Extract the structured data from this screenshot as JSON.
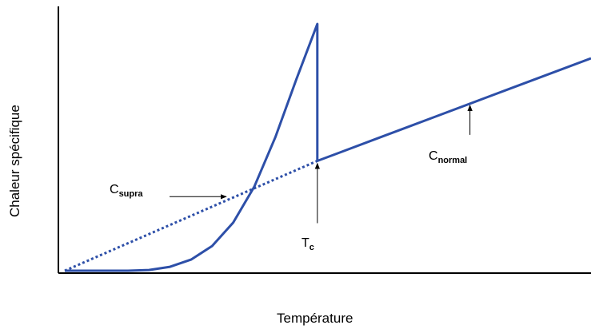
{
  "chart_data": {
    "type": "line",
    "xlabel": "Température",
    "ylabel": "Chaleur spécifique",
    "xlim": [
      0,
      10
    ],
    "ylim": [
      0,
      10
    ],
    "grid": false,
    "legend": "none",
    "series": [
      {
        "style": "solid",
        "color": "#2d4fa8",
        "x": [
          0,
          1.2,
          1.6,
          2.0,
          2.4,
          2.8,
          3.2,
          3.6,
          4.0,
          4.4,
          4.8,
          4.8,
          5.2,
          6.0,
          7.0,
          8.0,
          9.0,
          10.0
        ],
        "y": [
          0,
          0,
          0.03,
          0.16,
          0.45,
          1.0,
          1.95,
          3.4,
          5.4,
          7.75,
          10.0,
          4.45,
          4.77,
          5.41,
          6.21,
          7.01,
          7.81,
          8.61
        ]
      },
      {
        "style": "dotted",
        "color": "#2d4fa8",
        "x": [
          0,
          4.8
        ],
        "y": [
          0,
          4.45
        ]
      }
    ],
    "annotations": [
      {
        "base": "C",
        "sub": "supra",
        "points_to": [
          3.1,
          3.0
        ]
      },
      {
        "base": "T",
        "sub": "c",
        "points_to": [
          4.8,
          4.45
        ]
      },
      {
        "base": "C",
        "sub": "normal",
        "points_to": [
          7.7,
          6.8
        ]
      }
    ]
  }
}
